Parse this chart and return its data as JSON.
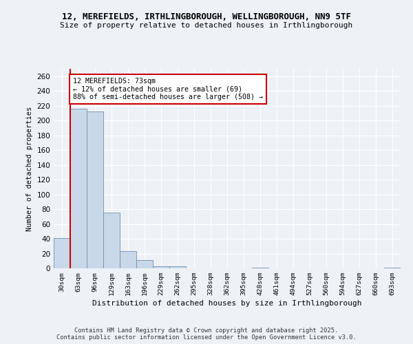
{
  "title_line1": "12, MEREFIELDS, IRTHLINGBOROUGH, WELLINGBOROUGH, NN9 5TF",
  "title_line2": "Size of property relative to detached houses in Irthlingborough",
  "xlabel": "Distribution of detached houses by size in Irthlingborough",
  "ylabel": "Number of detached properties",
  "categories": [
    "30sqm",
    "63sqm",
    "96sqm",
    "129sqm",
    "163sqm",
    "196sqm",
    "229sqm",
    "262sqm",
    "295sqm",
    "328sqm",
    "362sqm",
    "395sqm",
    "428sqm",
    "461sqm",
    "494sqm",
    "527sqm",
    "560sqm",
    "594sqm",
    "627sqm",
    "660sqm",
    "693sqm"
  ],
  "values": [
    41,
    216,
    212,
    75,
    23,
    11,
    3,
    3,
    0,
    0,
    0,
    0,
    1,
    0,
    0,
    0,
    0,
    0,
    0,
    0,
    1
  ],
  "bar_color": "#c8d8e8",
  "bar_edge_color": "#7090b0",
  "annotation_text": "12 MEREFIELDS: 73sqm\n← 12% of detached houses are smaller (69)\n88% of semi-detached houses are larger (508) →",
  "annotation_box_color": "#ffffff",
  "annotation_box_edge_color": "#cc0000",
  "vline_color": "#cc0000",
  "ylim": [
    0,
    270
  ],
  "yticks": [
    0,
    20,
    40,
    60,
    80,
    100,
    120,
    140,
    160,
    180,
    200,
    220,
    240,
    260
  ],
  "background_color": "#eef2f7",
  "grid_color": "#ffffff",
  "footer_line1": "Contains HM Land Registry data © Crown copyright and database right 2025.",
  "footer_line2": "Contains public sector information licensed under the Open Government Licence v3.0."
}
